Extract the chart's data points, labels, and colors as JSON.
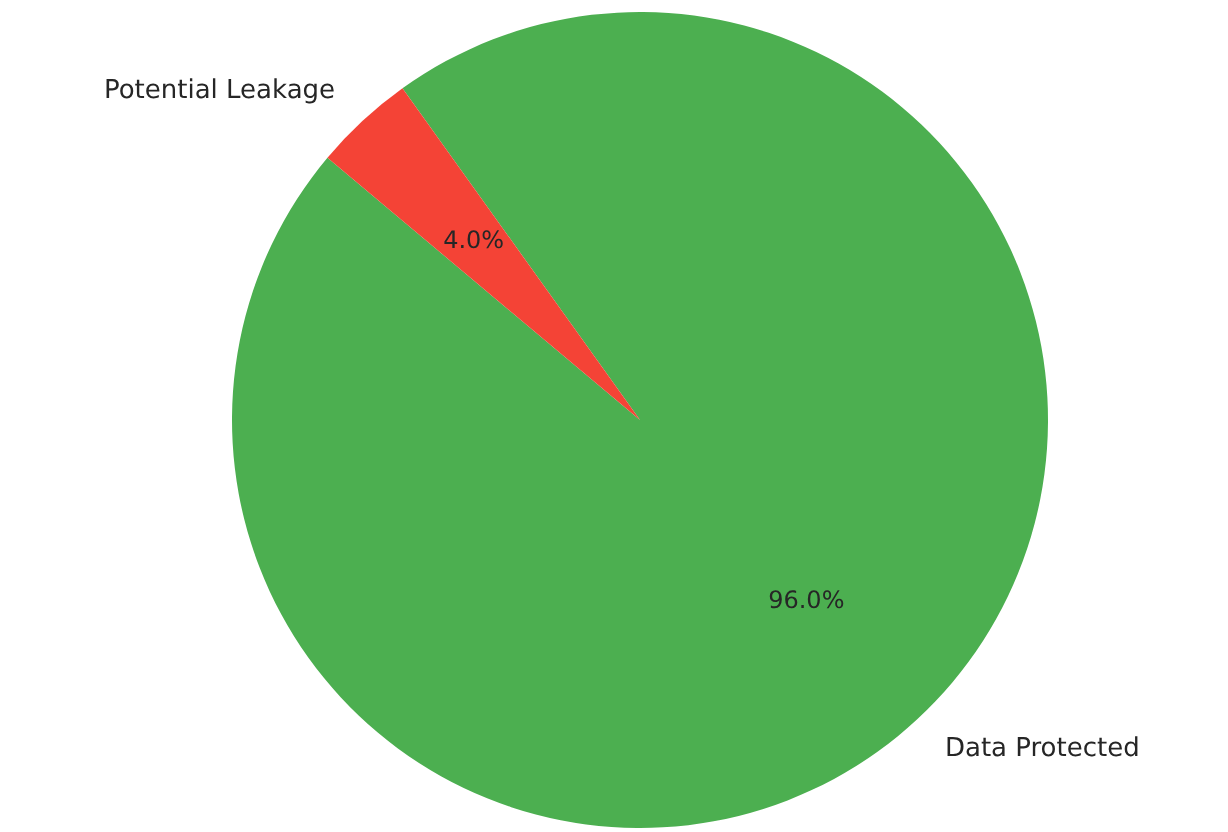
{
  "chart_data": {
    "type": "pie",
    "categories": [
      "Data Protected",
      "Potential Leakage"
    ],
    "values": [
      96,
      4
    ],
    "colors": [
      "#4caf50",
      "#f44336"
    ],
    "value_labels": [
      "96.0%",
      "4.0%"
    ]
  }
}
